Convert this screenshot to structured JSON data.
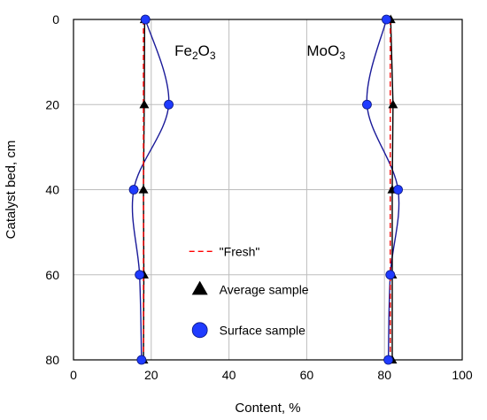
{
  "chart_data": {
    "type": "line",
    "xlabel": "Content, %",
    "ylabel": "Catalyst bed, cm",
    "xlim": [
      0,
      100
    ],
    "ylim": [
      0,
      80
    ],
    "y_inverted": true,
    "grid": true,
    "x_ticks": [
      "0",
      "20",
      "40",
      "60",
      "80",
      "100"
    ],
    "y_ticks": [
      "0",
      "20",
      "40",
      "60",
      "80"
    ],
    "annotations": [
      {
        "id": "fe2o3",
        "base": "Fe",
        "sub1": "2",
        "mid": "O",
        "sub2": "3",
        "x": 26,
        "y": 8.5
      },
      {
        "id": "moo3",
        "base": "MoO",
        "sub1": "3",
        "mid": "",
        "sub2": "",
        "x": 60,
        "y": 8.5
      }
    ],
    "legend": {
      "placement": "lower-center",
      "entries": [
        {
          "id": "fresh",
          "label": "\"Fresh\"",
          "marker": "dashed-line"
        },
        {
          "id": "average",
          "label": "Average sample",
          "marker": "triangle"
        },
        {
          "id": "surface",
          "label": "Surface sample",
          "marker": "circle"
        }
      ]
    },
    "colors": {
      "fresh": "#ff0000",
      "average": "#000000",
      "surface_fill": "#1f3bff",
      "surface_line": "#1a1a99",
      "grid": "#bdbdbd"
    },
    "series": [
      {
        "name": "\"Fresh\"",
        "group": "Fe2O3",
        "style": "dashed",
        "points": [
          [
            18,
            0
          ],
          [
            18,
            80
          ]
        ]
      },
      {
        "name": "\"Fresh\"",
        "group": "MoO3",
        "style": "dashed",
        "points": [
          [
            81.5,
            0
          ],
          [
            81.5,
            80
          ]
        ]
      },
      {
        "name": "Average sample",
        "group": "Fe2O3",
        "style": "triangle",
        "points": [
          [
            18.3,
            0
          ],
          [
            18.2,
            20
          ],
          [
            18,
            40
          ],
          [
            18.1,
            60
          ],
          [
            18,
            80
          ]
        ]
      },
      {
        "name": "Average sample",
        "group": "MoO3",
        "style": "triangle",
        "points": [
          [
            81.6,
            0
          ],
          [
            82.2,
            20
          ],
          [
            82,
            40
          ],
          [
            82,
            60
          ],
          [
            82,
            80
          ]
        ]
      },
      {
        "name": "Surface sample",
        "group": "Fe2O3",
        "style": "circle",
        "points": [
          [
            18.5,
            0
          ],
          [
            24.5,
            20
          ],
          [
            15.5,
            40
          ],
          [
            17,
            60
          ],
          [
            17.5,
            80
          ]
        ]
      },
      {
        "name": "Surface sample",
        "group": "MoO3",
        "style": "circle",
        "points": [
          [
            80.5,
            0
          ],
          [
            75.5,
            20
          ],
          [
            83.5,
            40
          ],
          [
            81.5,
            60
          ],
          [
            81,
            80
          ]
        ]
      }
    ]
  }
}
